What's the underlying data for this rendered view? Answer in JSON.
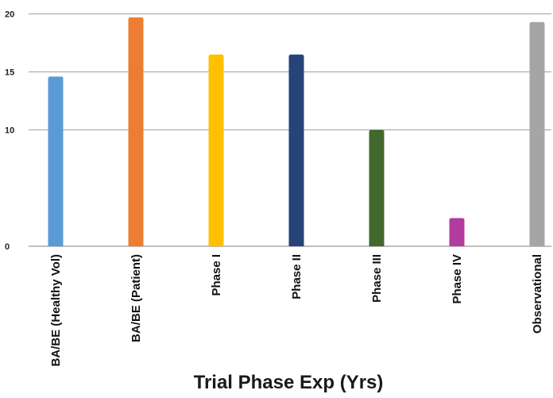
{
  "chart_data": {
    "type": "bar",
    "title": "",
    "xlabel": "Trial Phase Exp (Yrs)",
    "ylabel": "",
    "ylim": [
      0,
      25
    ],
    "yticks": [
      0,
      10,
      15,
      20,
      25
    ],
    "grid": true,
    "categories": [
      "BA/BE (Healthy Vol)",
      "BA/BE (Patient)",
      "Phase I",
      "Phase II",
      "Phase III",
      "Phase IV",
      "Observational"
    ],
    "values": [
      14.6,
      19.7,
      16.5,
      16.5,
      10.0,
      2.4,
      19.3
    ],
    "colors": [
      "#5b9bd5",
      "#ed7d31",
      "#ffc000",
      "#264478",
      "#43682b",
      "#b23ba0",
      "#a5a5a5"
    ]
  }
}
